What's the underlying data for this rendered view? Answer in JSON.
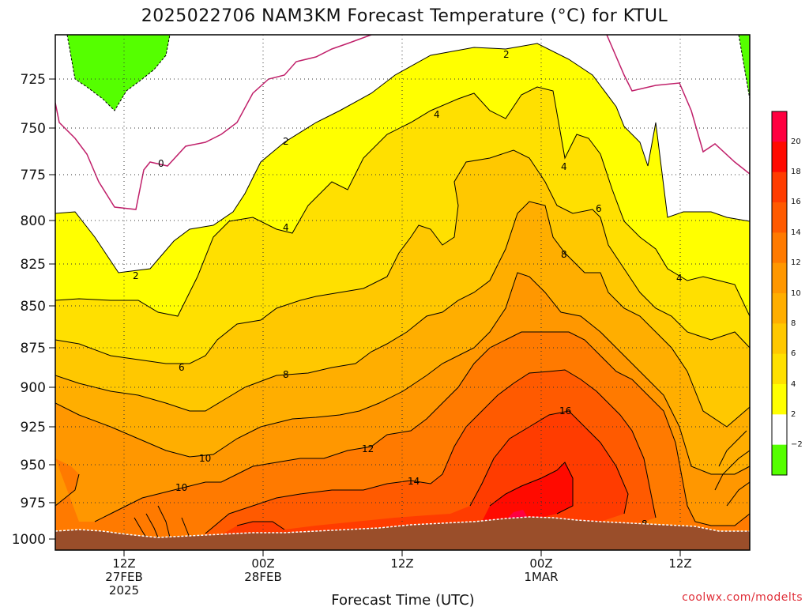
{
  "title": "2025022706 NAM3KM Forecast Temperature (°C) for KTUL",
  "xlabel": "Forecast Time (UTC)",
  "credit": "coolwx.com/modelts",
  "chart_data": {
    "type": "heatmap",
    "variable": "Temperature (°C)",
    "y_axis": {
      "ticks": [
        "725",
        "750",
        "775",
        "800",
        "825",
        "850",
        "875",
        "900",
        "925",
        "950",
        "975",
        "1000"
      ],
      "inverted": true
    },
    "x_axis": {
      "ticks": [
        {
          "label": "12Z",
          "sub1": "27FEB",
          "sub2": "2025"
        },
        {
          "label": "00Z",
          "sub1": "28FEB",
          "sub2": ""
        },
        {
          "label": "12Z",
          "sub1": "",
          "sub2": ""
        },
        {
          "label": "00Z",
          "sub1": "1MAR",
          "sub2": ""
        },
        {
          "label": "12Z",
          "sub1": "",
          "sub2": ""
        }
      ]
    },
    "colorbar": {
      "ticks": [
        "20",
        "18",
        "16",
        "14",
        "12",
        "10",
        "8",
        "6",
        "4",
        "2",
        "−2"
      ],
      "colors": [
        "#ff0040",
        "#ff0a00",
        "#ff3c00",
        "#ff5a00",
        "#ff7a00",
        "#ff9700",
        "#ffae00",
        "#ffc800",
        "#ffe000",
        "#ffff00",
        "#ffffff",
        "#55ff00"
      ]
    },
    "contour_labels": [
      "0",
      "2",
      "2",
      "2",
      "4",
      "4",
      "4",
      "4",
      "6",
      "6",
      "8",
      "8",
      "8",
      "10",
      "10",
      "12",
      "14",
      "16"
    ],
    "grid": true
  }
}
